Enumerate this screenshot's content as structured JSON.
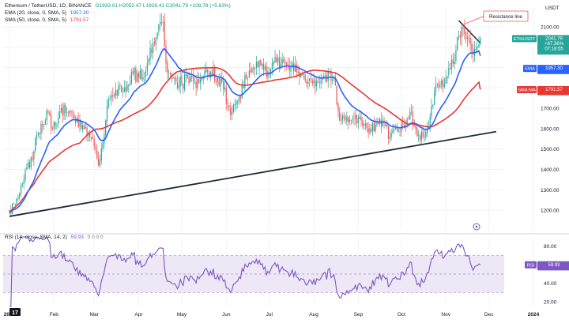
{
  "header": {
    "symbol_line": "Ethereum / TetherUSD, 1D, BINANCE",
    "ohlc": "O1933.01  H2052.47  L1928.41  C2041.79  +108.78 (+5.63%)",
    "ema_label": "EMA (20, close, 0, SMA, 5)",
    "ema_value": "1957.30",
    "sma_label": "SMA (50, close, 0, SMA, 5)",
    "sma_value": "1791.57",
    "rsi_label": "RSI (14, close, SMA, 14, 2)",
    "rsi_value_text": "59.93",
    "rsi_extra": "0 0 0 0"
  },
  "price_tags": {
    "ticker": "ETHUSDT",
    "price": "2041.79",
    "change": "+67.36%",
    "timer": "07:18:55",
    "ema_tag": "EMA",
    "ema_price": "1957.30",
    "sma_tag": "SMA:MA",
    "sma_price": "1791.57",
    "rsi_tag": "RSI",
    "rsi_value": "59.93"
  },
  "annotation": {
    "text": "Resistance line"
  },
  "currency": "USDT",
  "colors": {
    "up": "#26a69a",
    "down": "#ef5350",
    "ema": "#2962ff",
    "sma": "#e53935",
    "rsi": "#7e57c2",
    "rsi_band": "#ede7f6",
    "trendline": "#1e2a3a",
    "accent": "#2962ff"
  },
  "chart_data": [
    {
      "type": "candlestick",
      "title": "Ethereum / TetherUSD, 1D, BINANCE",
      "ylim": [
        1100,
        2200
      ],
      "y_ticks": [
        1200,
        1300,
        1400,
        1500,
        1600,
        1700,
        1800,
        1900,
        2000,
        2100
      ],
      "x_ticks": [
        "2023",
        "Feb",
        "Mar",
        "Apr",
        "May",
        "Jun",
        "Jul",
        "Aug",
        "Sep",
        "Oct",
        "Nov",
        "Dec",
        "2024"
      ],
      "period": "2023-01-01 to 2023-11-25, daily",
      "waypoints": [
        [
          0,
          1197
        ],
        [
          4,
          1230
        ],
        [
          7,
          1280
        ],
        [
          9,
          1330
        ],
        [
          12,
          1410
        ],
        [
          16,
          1450
        ],
        [
          18,
          1550
        ],
        [
          20,
          1580
        ],
        [
          23,
          1615
        ],
        [
          26,
          1690
        ],
        [
          30,
          1600
        ],
        [
          33,
          1620
        ],
        [
          36,
          1700
        ],
        [
          40,
          1680
        ],
        [
          45,
          1650
        ],
        [
          50,
          1600
        ],
        [
          55,
          1580
        ],
        [
          58,
          1550
        ],
        [
          62,
          1420
        ],
        [
          66,
          1570
        ],
        [
          68,
          1710
        ],
        [
          72,
          1760
        ],
        [
          77,
          1810
        ],
        [
          81,
          1780
        ],
        [
          86,
          1870
        ],
        [
          90,
          1850
        ],
        [
          95,
          1880
        ],
        [
          100,
          2020
        ],
        [
          104,
          2110
        ],
        [
          107,
          2120
        ],
        [
          109,
          1920
        ],
        [
          112,
          1870
        ],
        [
          116,
          1830
        ],
        [
          120,
          1820
        ],
        [
          124,
          1850
        ],
        [
          130,
          1800
        ],
        [
          135,
          1860
        ],
        [
          140,
          1880
        ],
        [
          145,
          1850
        ],
        [
          148,
          1830
        ],
        [
          152,
          1720
        ],
        [
          155,
          1680
        ],
        [
          160,
          1760
        ],
        [
          165,
          1850
        ],
        [
          170,
          1900
        ],
        [
          175,
          1910
        ],
        [
          180,
          1880
        ],
        [
          185,
          1950
        ],
        [
          188,
          1900
        ],
        [
          192,
          1920
        ],
        [
          196,
          1900
        ],
        [
          200,
          1880
        ],
        [
          205,
          1860
        ],
        [
          210,
          1840
        ],
        [
          215,
          1830
        ],
        [
          220,
          1860
        ],
        [
          226,
          1850
        ],
        [
          228,
          1720
        ],
        [
          230,
          1640
        ],
        [
          235,
          1660
        ],
        [
          240,
          1650
        ],
        [
          245,
          1640
        ],
        [
          250,
          1580
        ],
        [
          255,
          1620
        ],
        [
          260,
          1640
        ],
        [
          265,
          1560
        ],
        [
          270,
          1590
        ],
        [
          275,
          1610
        ],
        [
          280,
          1680
        ],
        [
          283,
          1600
        ],
        [
          285,
          1570
        ],
        [
          288,
          1560
        ],
        [
          292,
          1610
        ],
        [
          296,
          1780
        ],
        [
          300,
          1810
        ],
        [
          304,
          1850
        ],
        [
          307,
          1890
        ],
        [
          310,
          1930
        ],
        [
          313,
          2060
        ],
        [
          315,
          2100
        ],
        [
          318,
          2040
        ],
        [
          321,
          2010
        ],
        [
          324,
          1990
        ],
        [
          326,
          2000
        ],
        [
          328,
          2041
        ]
      ],
      "overlays": [
        {
          "name": "EMA (20, close, 0, SMA, 5)",
          "last_value": 1957.3
        },
        {
          "name": "SMA (50, close, 0, SMA, 5)",
          "last_value": 1791.57
        }
      ],
      "trendline": {
        "x": [
          "2023-01-01",
          "2023-11-25"
        ],
        "y": [
          1170,
          1570
        ]
      },
      "resistance_line": {
        "x": [
          "2023-11-10",
          "2023-11-25"
        ],
        "y": [
          2130,
          2020
        ]
      },
      "last_close": 2041.79
    },
    {
      "type": "line",
      "title": "RSI (14, close, SMA, 14, 2)",
      "ylim": [
        15,
        90
      ],
      "y_ticks": [
        20,
        40,
        60,
        80
      ],
      "band": [
        30,
        70
      ],
      "midline": 50,
      "last_value": 59.93,
      "x_ticks": [
        "2023",
        "Feb",
        "Mar",
        "Apr",
        "May",
        "Jun",
        "Jul",
        "Aug",
        "Sep",
        "Oct",
        "Nov",
        "Dec",
        "2024"
      ]
    }
  ]
}
